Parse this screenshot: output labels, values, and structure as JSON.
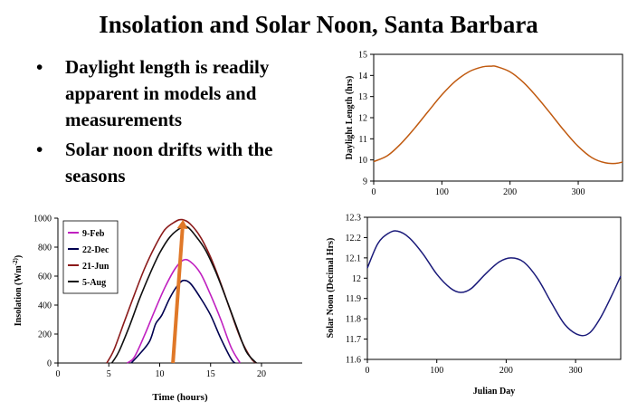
{
  "page": {
    "title": "Insolation and Solar Noon, Santa Barbara",
    "bullets": [
      "Daylight length is readily apparent in models and measurements",
      "Solar noon drifts with the seasons"
    ]
  },
  "colors": {
    "daylight_line": "#c05a10",
    "solar_noon_line": "#1a1a7a",
    "arrow": "#e07828",
    "feb": "#c020c0",
    "dec": "#000050",
    "jun": "#8b1a1a",
    "aug": "#101010"
  },
  "chart_data": [
    {
      "id": "daylight",
      "type": "line",
      "title": "",
      "xlabel": "",
      "ylabel": "Daylight Length (hrs)",
      "xlim": [
        0,
        365
      ],
      "ylim": [
        9,
        15
      ],
      "xticks": [
        0,
        100,
        200,
        300
      ],
      "yticks": [
        9,
        10,
        11,
        12,
        13,
        14,
        15
      ],
      "grid": false,
      "series": [
        {
          "x": [
            0,
            20,
            40,
            60,
            80,
            100,
            120,
            140,
            160,
            172,
            180,
            200,
            220,
            240,
            260,
            280,
            300,
            320,
            340,
            356,
            365
          ],
          "y": [
            9.92,
            10.2,
            10.77,
            11.5,
            12.3,
            13.08,
            13.73,
            14.18,
            14.41,
            14.44,
            14.42,
            14.17,
            13.66,
            12.96,
            12.17,
            11.36,
            10.64,
            10.11,
            9.86,
            9.84,
            9.9
          ]
        }
      ]
    },
    {
      "id": "insolation",
      "type": "line",
      "title": "",
      "xlabel": "Time (hours)",
      "ylabel": "Insolation (Wm^-2)",
      "xlim": [
        0,
        24
      ],
      "ylim": [
        0,
        1000
      ],
      "xticks": [
        0,
        5,
        10,
        15,
        20
      ],
      "yticks": [
        0,
        200,
        400,
        600,
        800,
        1000
      ],
      "grid": false,
      "legend": "top-left",
      "series": [
        {
          "name": "9-Feb",
          "x": [
            6.8,
            7.5,
            8.5,
            9.5,
            10.5,
            11.5,
            12.3,
            13,
            14,
            15,
            16,
            17,
            17.9
          ],
          "y": [
            0,
            40,
            190,
            360,
            520,
            650,
            710,
            700,
            620,
            470,
            300,
            110,
            0
          ]
        },
        {
          "name": "22-Dec",
          "x": [
            7.2,
            8,
            9,
            9.6,
            10.2,
            11,
            11.7,
            12.3,
            13,
            14,
            15,
            16,
            17,
            17.4
          ],
          "y": [
            0,
            60,
            150,
            270,
            330,
            450,
            530,
            570,
            550,
            450,
            330,
            170,
            30,
            0
          ]
        },
        {
          "name": "21-Jun",
          "x": [
            4.8,
            5.5,
            6.5,
            7.5,
            8.5,
            9.5,
            10.5,
            11.5,
            12.2,
            13,
            14,
            15,
            16,
            17,
            18,
            19,
            19.5
          ],
          "y": [
            0,
            90,
            280,
            470,
            650,
            800,
            920,
            975,
            990,
            960,
            870,
            730,
            550,
            350,
            160,
            30,
            0
          ]
        },
        {
          "name": "5-Aug",
          "x": [
            5.3,
            6,
            7,
            8,
            9,
            10,
            11,
            12,
            12.7,
            13.5,
            14.5,
            15.5,
            16.5,
            17.5,
            18.5,
            19.5
          ],
          "y": [
            0,
            80,
            250,
            440,
            610,
            760,
            870,
            930,
            940,
            880,
            780,
            630,
            450,
            260,
            80,
            0
          ]
        }
      ]
    },
    {
      "id": "solar_noon",
      "type": "line",
      "title": "",
      "xlabel": "Julian Day",
      "ylabel": "Solar Noon (Decimal Hrs)",
      "xlim": [
        0,
        365
      ],
      "ylim": [
        11.6,
        12.3
      ],
      "xticks": [
        0,
        100,
        200,
        300
      ],
      "yticks": [
        11.6,
        11.7,
        11.8,
        11.9,
        12.0,
        12.1,
        12.2,
        12.3
      ],
      "ytick_labels": [
        "11.6",
        "11.7",
        "11.8",
        "11.9",
        "12",
        "12.1",
        "12.2",
        "12.3"
      ],
      "grid": false,
      "series": [
        {
          "x": [
            0,
            15,
            30,
            43,
            60,
            80,
            100,
            120,
            135,
            150,
            170,
            190,
            207,
            225,
            245,
            265,
            285,
            305,
            320,
            335,
            350,
            365
          ],
          "y": [
            12.05,
            12.17,
            12.22,
            12.232,
            12.2,
            12.12,
            12.02,
            11.95,
            11.93,
            11.95,
            12.02,
            12.08,
            12.1,
            12.08,
            12.0,
            11.88,
            11.77,
            11.72,
            11.73,
            11.8,
            11.9,
            12.01
          ]
        }
      ]
    }
  ],
  "arrow": {
    "x0": 11.3,
    "y0": 0,
    "x1": 12.3,
    "y1": 990
  }
}
